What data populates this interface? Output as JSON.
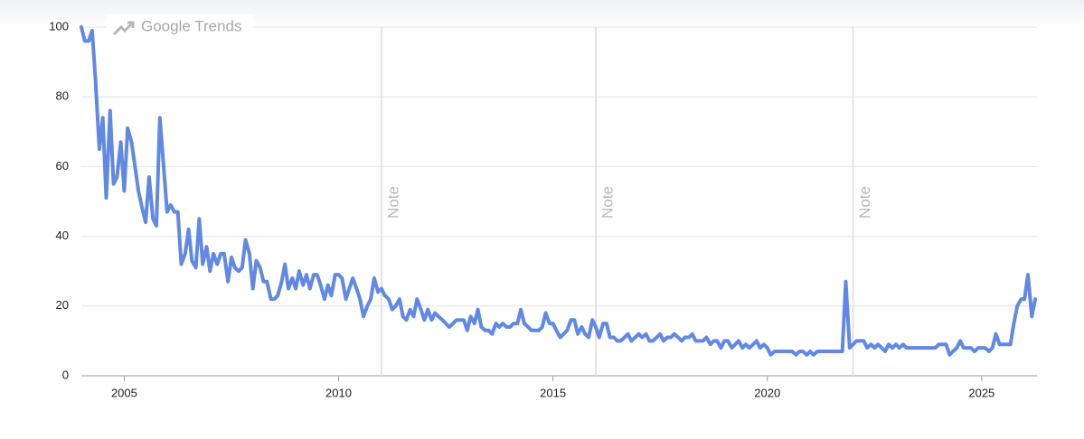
{
  "chart_data": {
    "type": "line",
    "branding": "Google Trends",
    "x": [
      2004.0,
      2004.08,
      2004.17,
      2004.25,
      2004.33,
      2004.42,
      2004.5,
      2004.58,
      2004.67,
      2004.75,
      2004.83,
      2004.92,
      2005.0,
      2005.08,
      2005.17,
      2005.25,
      2005.33,
      2005.42,
      2005.5,
      2005.58,
      2005.67,
      2005.75,
      2005.83,
      2005.92,
      2006.0,
      2006.08,
      2006.17,
      2006.25,
      2006.33,
      2006.42,
      2006.5,
      2006.58,
      2006.67,
      2006.75,
      2006.83,
      2006.92,
      2007.0,
      2007.08,
      2007.17,
      2007.25,
      2007.33,
      2007.42,
      2007.5,
      2007.58,
      2007.67,
      2007.75,
      2007.83,
      2007.92,
      2008.0,
      2008.08,
      2008.17,
      2008.25,
      2008.33,
      2008.42,
      2008.5,
      2008.58,
      2008.67,
      2008.75,
      2008.83,
      2008.92,
      2009.0,
      2009.08,
      2009.17,
      2009.25,
      2009.33,
      2009.42,
      2009.5,
      2009.58,
      2009.67,
      2009.75,
      2009.83,
      2009.92,
      2010.0,
      2010.08,
      2010.17,
      2010.25,
      2010.33,
      2010.42,
      2010.5,
      2010.58,
      2010.67,
      2010.75,
      2010.83,
      2010.92,
      2011.0,
      2011.08,
      2011.17,
      2011.25,
      2011.33,
      2011.42,
      2011.5,
      2011.58,
      2011.67,
      2011.75,
      2011.83,
      2011.92,
      2012.0,
      2012.08,
      2012.17,
      2012.25,
      2012.33,
      2012.42,
      2012.5,
      2012.58,
      2012.67,
      2012.75,
      2012.83,
      2012.92,
      2013.0,
      2013.08,
      2013.17,
      2013.25,
      2013.33,
      2013.42,
      2013.5,
      2013.58,
      2013.67,
      2013.75,
      2013.83,
      2013.92,
      2014.0,
      2014.08,
      2014.17,
      2014.25,
      2014.33,
      2014.42,
      2014.5,
      2014.58,
      2014.67,
      2014.75,
      2014.83,
      2014.92,
      2015.0,
      2015.08,
      2015.17,
      2015.25,
      2015.33,
      2015.42,
      2015.5,
      2015.58,
      2015.67,
      2015.75,
      2015.83,
      2015.92,
      2016.0,
      2016.08,
      2016.17,
      2016.25,
      2016.33,
      2016.42,
      2016.5,
      2016.58,
      2016.67,
      2016.75,
      2016.83,
      2016.92,
      2017.0,
      2017.08,
      2017.17,
      2017.25,
      2017.33,
      2017.42,
      2017.5,
      2017.58,
      2017.67,
      2017.75,
      2017.83,
      2017.92,
      2018.0,
      2018.08,
      2018.17,
      2018.25,
      2018.33,
      2018.42,
      2018.5,
      2018.58,
      2018.67,
      2018.75,
      2018.83,
      2018.92,
      2019.0,
      2019.08,
      2019.17,
      2019.25,
      2019.33,
      2019.42,
      2019.5,
      2019.58,
      2019.67,
      2019.75,
      2019.83,
      2019.92,
      2020.0,
      2020.08,
      2020.17,
      2020.25,
      2020.33,
      2020.42,
      2020.5,
      2020.58,
      2020.67,
      2020.75,
      2020.83,
      2020.92,
      2021.0,
      2021.08,
      2021.17,
      2021.25,
      2021.33,
      2021.42,
      2021.5,
      2021.58,
      2021.67,
      2021.75,
      2021.83,
      2021.92,
      2022.0,
      2022.08,
      2022.17,
      2022.25,
      2022.33,
      2022.42,
      2022.5,
      2022.58,
      2022.67,
      2022.75,
      2022.83,
      2022.92,
      2023.0,
      2023.08,
      2023.17,
      2023.25,
      2023.33,
      2023.42,
      2023.5,
      2023.58,
      2023.67,
      2023.75,
      2023.83,
      2023.92,
      2024.0,
      2024.08,
      2024.17,
      2024.25,
      2024.33,
      2024.42,
      2024.5,
      2024.58,
      2024.67,
      2024.75,
      2024.83,
      2024.92,
      2025.0,
      2025.08,
      2025.17,
      2025.25,
      2025.33,
      2025.42,
      2025.5,
      2025.58,
      2025.67,
      2025.75,
      2025.83,
      2025.92,
      2026.0,
      2026.08,
      2026.17,
      2026.25
    ],
    "values": [
      100,
      96,
      96,
      99,
      85,
      65,
      74,
      51,
      76,
      55,
      57,
      67,
      53,
      71,
      67,
      60,
      53,
      48,
      44,
      57,
      45,
      43,
      74,
      60,
      47,
      49,
      47,
      47,
      32,
      35,
      42,
      33,
      31,
      45,
      32,
      37,
      30,
      35,
      32,
      35,
      35,
      27,
      34,
      31,
      30,
      31,
      39,
      35,
      25,
      33,
      31,
      27,
      27,
      22,
      22,
      23,
      27,
      32,
      25,
      28,
      25,
      30,
      26,
      29,
      25,
      29,
      29,
      26,
      22,
      26,
      23,
      29,
      29,
      28,
      22,
      25,
      28,
      25,
      22,
      17,
      20,
      22,
      28,
      24,
      25,
      23,
      22,
      19,
      20,
      22,
      17,
      16,
      19,
      17,
      22,
      19,
      16,
      19,
      16,
      18,
      17,
      16,
      15,
      14,
      15,
      16,
      16,
      16,
      13,
      17,
      15,
      19,
      14,
      13,
      13,
      12,
      15,
      14,
      15,
      14,
      14,
      15,
      15,
      19,
      15,
      14,
      13,
      13,
      13,
      14,
      18,
      15,
      15,
      13,
      11,
      12,
      13,
      16,
      16,
      12,
      14,
      12,
      11,
      16,
      14,
      11,
      15,
      15,
      11,
      11,
      10,
      10,
      11,
      12,
      10,
      11,
      12,
      11,
      12,
      10,
      10,
      11,
      12,
      10,
      11,
      11,
      12,
      11,
      10,
      11,
      11,
      12,
      10,
      10,
      10,
      11,
      9,
      10,
      10,
      8,
      10,
      10,
      8,
      9,
      10,
      8,
      9,
      8,
      9,
      10,
      8,
      9,
      8,
      6,
      7,
      7,
      7,
      7,
      7,
      7,
      6,
      7,
      7,
      6,
      7,
      6,
      7,
      7,
      7,
      7,
      7,
      7,
      7,
      7,
      27,
      8,
      9,
      10,
      10,
      10,
      8,
      9,
      8,
      9,
      8,
      7,
      9,
      8,
      9,
      8,
      9,
      8,
      8,
      8,
      8,
      8,
      8,
      8,
      8,
      8,
      9,
      9,
      9,
      6,
      7,
      8,
      10,
      8,
      8,
      8,
      7,
      8,
      8,
      8,
      7,
      8,
      12,
      9,
      9,
      9,
      9,
      15,
      20,
      22,
      22,
      29,
      17,
      22
    ],
    "color": "#6189e3",
    "xlim": [
      2004.0,
      2026.29
    ],
    "xticks": [
      2005,
      2010,
      2015,
      2020,
      2025
    ],
    "ylim": [
      0,
      100
    ],
    "yticks": [
      0,
      20,
      40,
      60,
      80,
      100
    ],
    "grid": true,
    "annotations": [
      {
        "x": 2011.0,
        "label": "Note"
      },
      {
        "x": 2016.0,
        "label": "Note"
      },
      {
        "x": 2022.0,
        "label": "Note"
      }
    ]
  }
}
